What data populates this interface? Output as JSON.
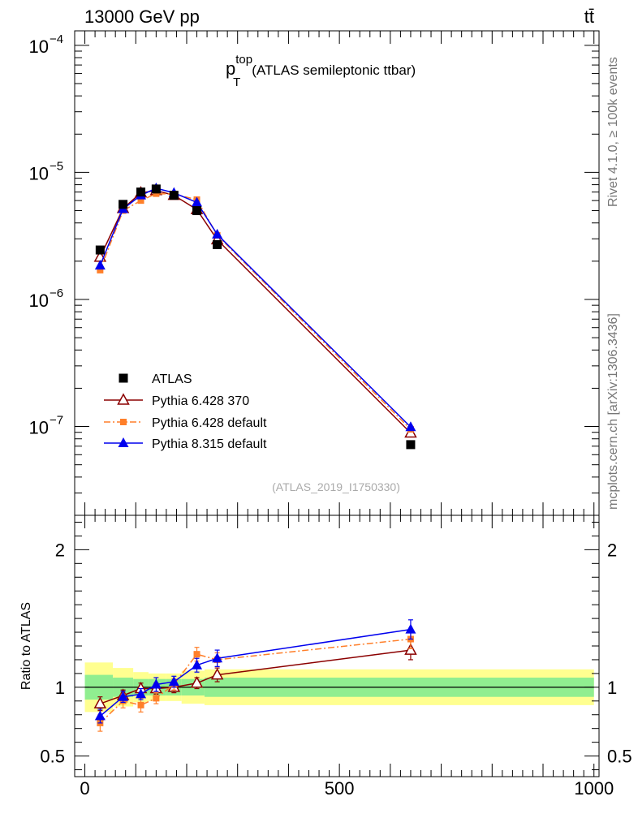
{
  "header": {
    "energy": "13000 GeV pp",
    "process": "tt̄"
  },
  "side_text": {
    "rivet": "Rivet 4.1.0, ≥ 100k events",
    "site": "mcplots.cern.ch [arXiv:1306.3436]"
  },
  "colors": {
    "data": "#000000",
    "p6_370": "#8b0000",
    "p6_default": "#ff7f2a",
    "p8": "#0000ee",
    "band_inner": "#90ee90",
    "band_outer": "#ffff90"
  },
  "chart_data": [
    {
      "type": "line",
      "title_base": "p",
      "title_sup": "top",
      "title_sub": "T",
      "title_rest": "(ATLAS semileptonic ttbar)",
      "analysis_label": "(ATLAS_2019_I1750330)",
      "yscale": "log",
      "ylim": [
        2e-08,
        0.00013
      ],
      "xlim": [
        -20,
        1010
      ],
      "y_tick_labels": [
        {
          "base": "10",
          "exp": "−4",
          "value": 0.0001
        },
        {
          "base": "10",
          "exp": "−5",
          "value": 1e-05
        },
        {
          "base": "10",
          "exp": "−6",
          "value": 1e-06
        },
        {
          "base": "10",
          "exp": "−7",
          "value": 1e-07
        }
      ],
      "x": [
        30,
        75,
        110,
        140,
        175,
        220,
        260,
        640
      ],
      "series": [
        {
          "name": "ATLAS",
          "marker": "square",
          "color_key": "data",
          "values": [
            2.45e-06,
            5.6e-06,
            7e-06,
            7.4e-06,
            6.6e-06,
            5e-06,
            2.7e-06,
            7.2e-08
          ]
        },
        {
          "name": "Pythia 6.428 370",
          "marker": "open-triangle",
          "color_key": "p6_370",
          "values": [
            2.15e-06,
            5.2e-06,
            6.9e-06,
            7.2e-06,
            6.6e-06,
            5.1e-06,
            2.95e-06,
            8.9e-08
          ]
        },
        {
          "name": "Pythia 6.428 default",
          "marker": "square-small",
          "color_key": "p6_default",
          "values": [
            1.7e-06,
            5e-06,
            6e-06,
            6.8e-06,
            6.75e-06,
            6.1e-06,
            3.2e-06,
            9.5e-08
          ]
        },
        {
          "name": "Pythia 8.315 default",
          "marker": "triangle",
          "color_key": "p8",
          "values": [
            1.85e-06,
            5.15e-06,
            6.6e-06,
            7.5e-06,
            6.9e-06,
            5.8e-06,
            3.25e-06,
            9.9e-08
          ]
        }
      ],
      "legend_position": "middle-left"
    },
    {
      "type": "line",
      "ylabel": "Ratio to ATLAS",
      "ylim": [
        0.35,
        2.25
      ],
      "xlim": [
        -20,
        1010
      ],
      "x_tick_labels": [
        {
          "label": "0",
          "value": 0
        },
        {
          "label": "500",
          "value": 500
        },
        {
          "label": "1000",
          "value": 1000
        }
      ],
      "y_tick_labels": [
        {
          "label": "0.5",
          "value": 0.5
        },
        {
          "label": "1",
          "value": 1
        },
        {
          "label": "2",
          "value": 2
        }
      ],
      "x": [
        30,
        75,
        110,
        140,
        175,
        220,
        260,
        640
      ],
      "bands": [
        {
          "x0": 0,
          "x1": 55,
          "inner": 0.09,
          "outer": 0.18
        },
        {
          "x0": 55,
          "x1": 95,
          "inner": 0.07,
          "outer": 0.14
        },
        {
          "x0": 95,
          "x1": 125,
          "inner": 0.06,
          "outer": 0.11
        },
        {
          "x0": 125,
          "x1": 160,
          "inner": 0.06,
          "outer": 0.1
        },
        {
          "x0": 160,
          "x1": 190,
          "inner": 0.06,
          "outer": 0.1
        },
        {
          "x0": 190,
          "x1": 235,
          "inner": 0.06,
          "outer": 0.12
        },
        {
          "x0": 235,
          "x1": 1000,
          "inner": 0.07,
          "outer": 0.13
        }
      ],
      "series": [
        {
          "name": "Pythia 6.428 370",
          "color_key": "p6_370",
          "values": [
            0.88,
            0.94,
            0.99,
            0.99,
            1.0,
            1.03,
            1.09,
            1.27
          ],
          "errors": [
            0.05,
            0.04,
            0.04,
            0.04,
            0.04,
            0.04,
            0.05,
            0.07
          ]
        },
        {
          "name": "Pythia 6.428 default",
          "color_key": "p6_default",
          "values": [
            0.74,
            0.9,
            0.87,
            0.92,
            1.02,
            1.24,
            1.2,
            1.35
          ],
          "errors": [
            0.06,
            0.05,
            0.05,
            0.04,
            0.04,
            0.05,
            0.05,
            0.07
          ]
        },
        {
          "name": "Pythia 8.315 default",
          "color_key": "p8",
          "values": [
            0.79,
            0.93,
            0.95,
            1.02,
            1.04,
            1.16,
            1.21,
            1.42
          ],
          "errors": [
            0.05,
            0.04,
            0.04,
            0.05,
            0.04,
            0.05,
            0.06,
            0.07
          ]
        }
      ]
    }
  ]
}
